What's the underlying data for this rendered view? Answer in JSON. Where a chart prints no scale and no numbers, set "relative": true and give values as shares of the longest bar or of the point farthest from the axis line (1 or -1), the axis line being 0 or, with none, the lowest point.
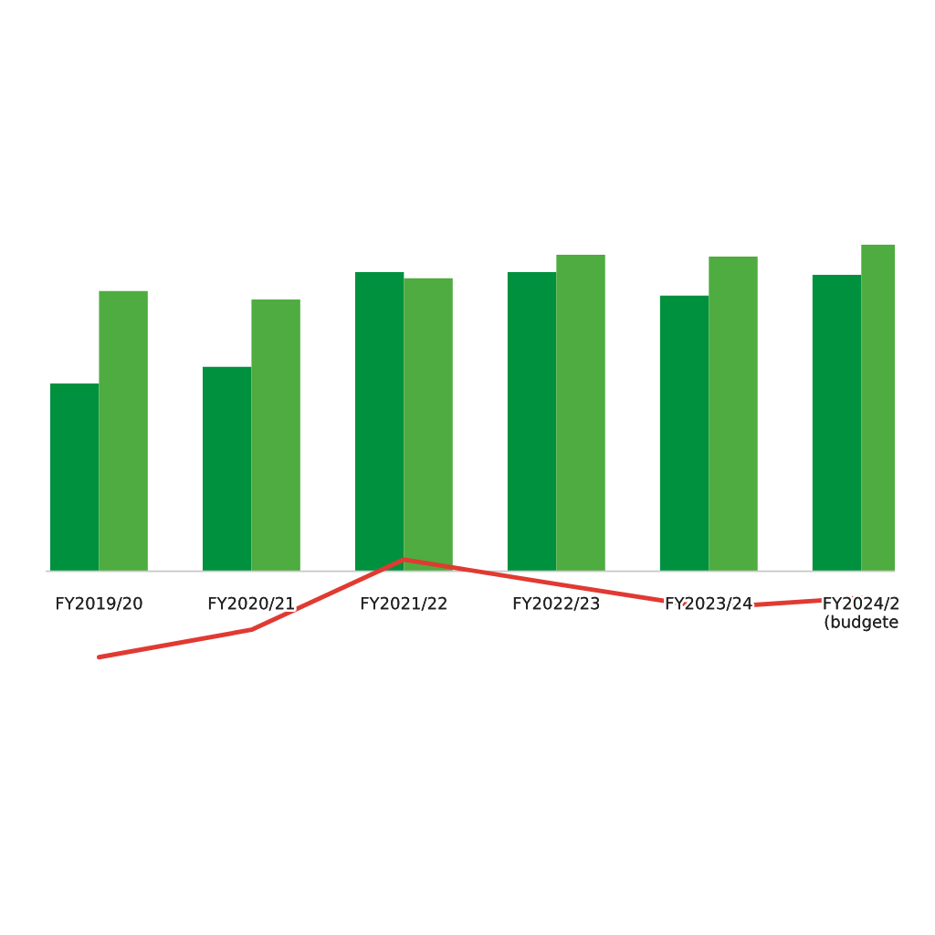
{
  "chart_data": {
    "type": "bar",
    "relative": true,
    "categories": [
      "FY2019/20",
      "FY2020/21",
      "FY2021/22",
      "FY2022/23",
      "FY2023/24",
      "FY2024/2\n(budgete"
    ],
    "series": [
      {
        "color": "#00913f",
        "values": [
          0.575,
          0.626,
          0.916,
          0.916,
          0.844,
          0.908
        ]
      },
      {
        "color": "#4fac40",
        "values": [
          0.858,
          0.832,
          0.897,
          0.969,
          0.964,
          1.0
        ]
      },
      {
        "type": "line",
        "color": "#e03a32",
        "values": [
          -0.263,
          -0.179,
          0.036,
          -0.039,
          -0.112,
          -0.081
        ]
      }
    ]
  }
}
